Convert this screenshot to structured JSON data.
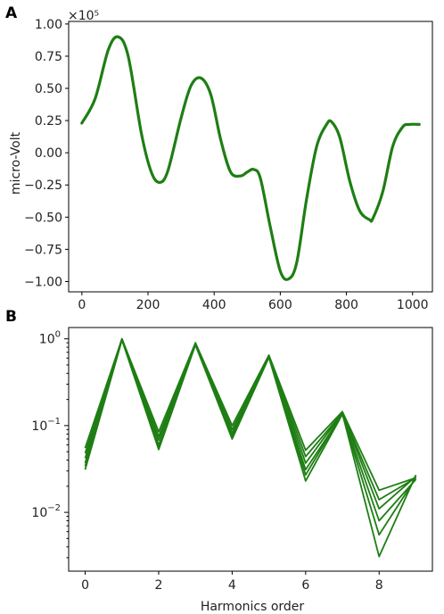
{
  "chart_data": [
    {
      "panel": "A",
      "type": "line",
      "xlabel": "",
      "ylabel": "micro-Volt",
      "offset_text": "×10⁵",
      "xlim": [
        -40,
        1060
      ],
      "ylim": [
        -1.08,
        1.02
      ],
      "xticks": [
        {
          "value": 0,
          "label": "0"
        },
        {
          "value": 200,
          "label": "200"
        },
        {
          "value": 400,
          "label": "400"
        },
        {
          "value": 600,
          "label": "600"
        },
        {
          "value": 800,
          "label": "800"
        },
        {
          "value": 1000,
          "label": "1000"
        }
      ],
      "yticks": [
        {
          "value": 1.0,
          "label": "1.00"
        },
        {
          "value": 0.75,
          "label": "0.75"
        },
        {
          "value": 0.5,
          "label": "0.50"
        },
        {
          "value": 0.25,
          "label": "0.25"
        },
        {
          "value": 0.0,
          "label": "0.00"
        },
        {
          "value": -0.25,
          "label": "−0.25"
        },
        {
          "value": -0.5,
          "label": "−0.50"
        },
        {
          "value": -0.75,
          "label": "−0.75"
        },
        {
          "value": -1.0,
          "label": "−1.00"
        }
      ],
      "series": [
        {
          "color": "#1e7e14",
          "x": [
            0,
            40,
            80,
            110,
            140,
            180,
            210,
            235,
            260,
            300,
            330,
            360,
            390,
            420,
            450,
            480,
            500,
            520,
            540,
            570,
            600,
            625,
            650,
            680,
            710,
            740,
            755,
            780,
            810,
            840,
            870,
            880,
            910,
            940,
            970,
            990,
            1020
          ],
          "y": [
            0.23,
            0.42,
            0.8,
            0.9,
            0.75,
            0.15,
            -0.15,
            -0.23,
            -0.14,
            0.27,
            0.52,
            0.58,
            0.45,
            0.1,
            -0.15,
            -0.18,
            -0.15,
            -0.13,
            -0.2,
            -0.58,
            -0.92,
            -0.98,
            -0.85,
            -0.35,
            0.05,
            0.22,
            0.24,
            0.12,
            -0.22,
            -0.45,
            -0.52,
            -0.51,
            -0.3,
            0.05,
            0.2,
            0.22,
            0.22
          ]
        }
      ]
    },
    {
      "panel": "B",
      "type": "line",
      "xlabel": "Harmonics order",
      "ylabel": "",
      "yscale": "log",
      "xlim": [
        -0.45,
        9.45
      ],
      "ylim": [
        0.0021,
        1.35
      ],
      "xticks": [
        {
          "value": 0,
          "label": "0"
        },
        {
          "value": 2,
          "label": "2"
        },
        {
          "value": 4,
          "label": "4"
        },
        {
          "value": 6,
          "label": "6"
        },
        {
          "value": 8,
          "label": "8"
        }
      ],
      "yticks": [
        {
          "value": 1,
          "base": "10",
          "exp": "0"
        },
        {
          "value": 0.1,
          "base": "10",
          "exp": "−1"
        },
        {
          "value": 0.01,
          "base": "10",
          "exp": "−2"
        }
      ],
      "x": [
        0,
        1,
        2,
        3,
        4,
        5,
        6,
        7,
        8,
        9
      ],
      "series": [
        {
          "color": "#1e7e14",
          "values": [
            0.055,
            1.0,
            0.085,
            0.9,
            0.1,
            0.65,
            0.052,
            0.145,
            0.018,
            0.025
          ]
        },
        {
          "color": "#1e7e14",
          "values": [
            0.048,
            1.0,
            0.075,
            0.88,
            0.09,
            0.64,
            0.044,
            0.14,
            0.014,
            0.025
          ]
        },
        {
          "color": "#1e7e14",
          "values": [
            0.042,
            1.0,
            0.068,
            0.87,
            0.082,
            0.63,
            0.037,
            0.14,
            0.011,
            0.026
          ]
        },
        {
          "color": "#1e7e14",
          "values": [
            0.037,
            0.98,
            0.06,
            0.86,
            0.076,
            0.62,
            0.031,
            0.135,
            0.008,
            0.024
          ]
        },
        {
          "color": "#1e7e14",
          "values": [
            0.031,
            0.97,
            0.053,
            0.85,
            0.07,
            0.61,
            0.023,
            0.135,
            0.0055,
            0.025
          ]
        },
        {
          "color": "#1e7e14",
          "values": [
            0.034,
            0.99,
            0.057,
            0.87,
            0.073,
            0.62,
            0.027,
            0.138,
            0.0031,
            0.027
          ]
        }
      ]
    }
  ]
}
